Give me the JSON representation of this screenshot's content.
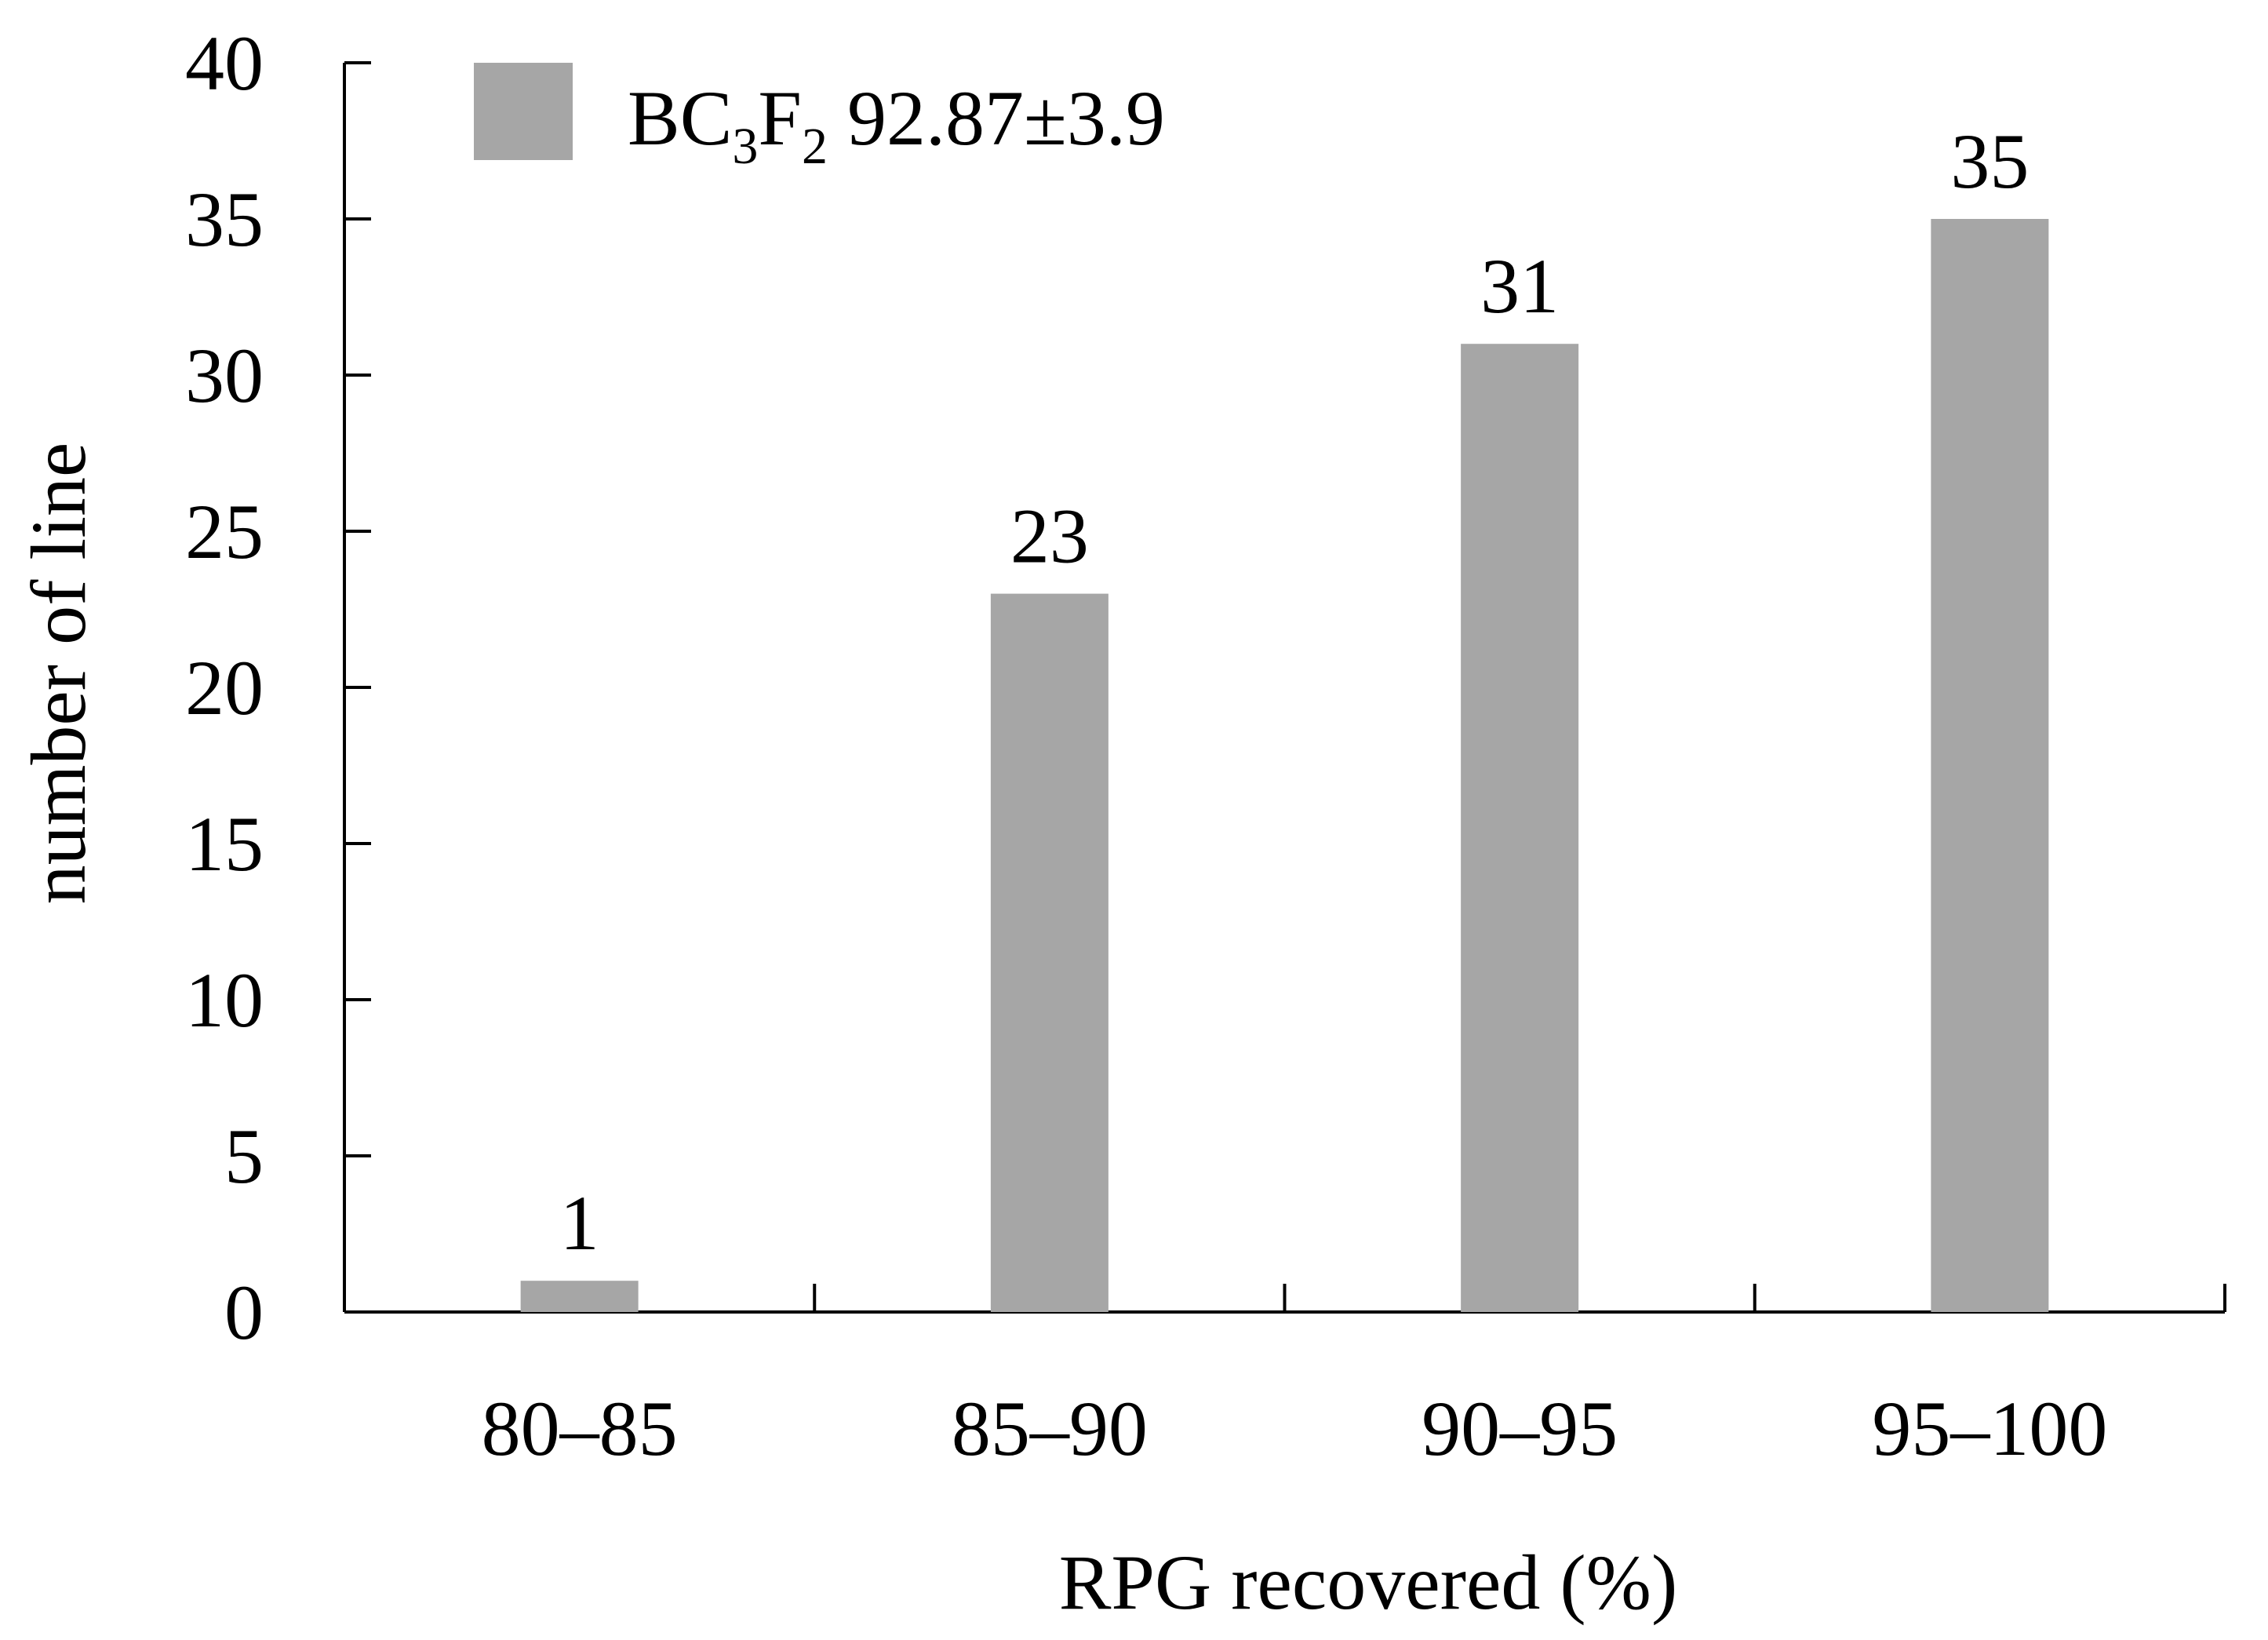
{
  "chart_data": {
    "type": "bar",
    "categories": [
      "80–85",
      "85–90",
      "90–95",
      "95–100"
    ],
    "series": [
      {
        "legend": {
          "base": "BC",
          "sub1": "3",
          "mid": "F",
          "sub2": "2",
          "rest": " 92.87±3.9"
        },
        "values": [
          1,
          23,
          31,
          35
        ],
        "color": "#a6a6a6"
      }
    ],
    "data_labels": [
      "1",
      "23",
      "31",
      "35"
    ],
    "xlabel": "RPG recovered (%)",
    "ylabel": "number of line",
    "ylim": [
      0,
      40
    ],
    "yticks": [
      0,
      5,
      10,
      15,
      20,
      25,
      30,
      35,
      40
    ],
    "grid": false,
    "legend_position": "top-left"
  }
}
